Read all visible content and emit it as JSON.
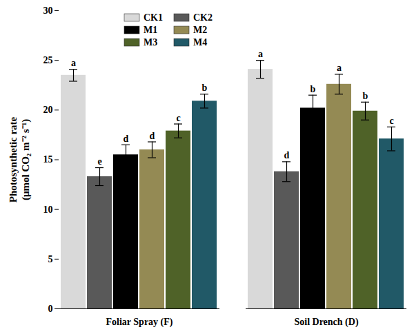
{
  "chart_data": {
    "type": "bar",
    "y_label": "Photosynthetic rate\n(μmol CO₂ m⁻² s⁻¹)",
    "categories": [
      "Foliar Spray (F)",
      "Soil Drench (D)"
    ],
    "series": [
      {
        "name": "CK1",
        "color": "#d9d9d9",
        "values": [
          23.5,
          24.1
        ],
        "errors": [
          0.6,
          0.9
        ],
        "labels": [
          "a",
          "a"
        ]
      },
      {
        "name": "CK2",
        "color": "#595959",
        "values": [
          13.3,
          13.8
        ],
        "errors": [
          0.9,
          1.0
        ],
        "labels": [
          "e",
          "d"
        ]
      },
      {
        "name": "M1",
        "color": "#000000",
        "values": [
          15.5,
          20.2
        ],
        "errors": [
          1.0,
          1.3
        ],
        "labels": [
          "d",
          "b"
        ]
      },
      {
        "name": "M2",
        "color": "#948a54",
        "values": [
          16.0,
          22.6
        ],
        "errors": [
          0.8,
          1.0
        ],
        "labels": [
          "d",
          "a"
        ]
      },
      {
        "name": "M3",
        "color": "#4f6228",
        "values": [
          17.9,
          19.9
        ],
        "errors": [
          0.7,
          0.9
        ],
        "labels": [
          "c",
          "b"
        ]
      },
      {
        "name": "M4",
        "color": "#215967",
        "values": [
          20.9,
          17.1
        ],
        "errors": [
          0.7,
          1.2
        ],
        "labels": [
          "b",
          "c"
        ]
      }
    ],
    "ylim": [
      0,
      30
    ],
    "yticks": [
      0,
      5,
      10,
      15,
      20,
      25,
      30
    ],
    "grid": false,
    "legend": "top-left"
  }
}
